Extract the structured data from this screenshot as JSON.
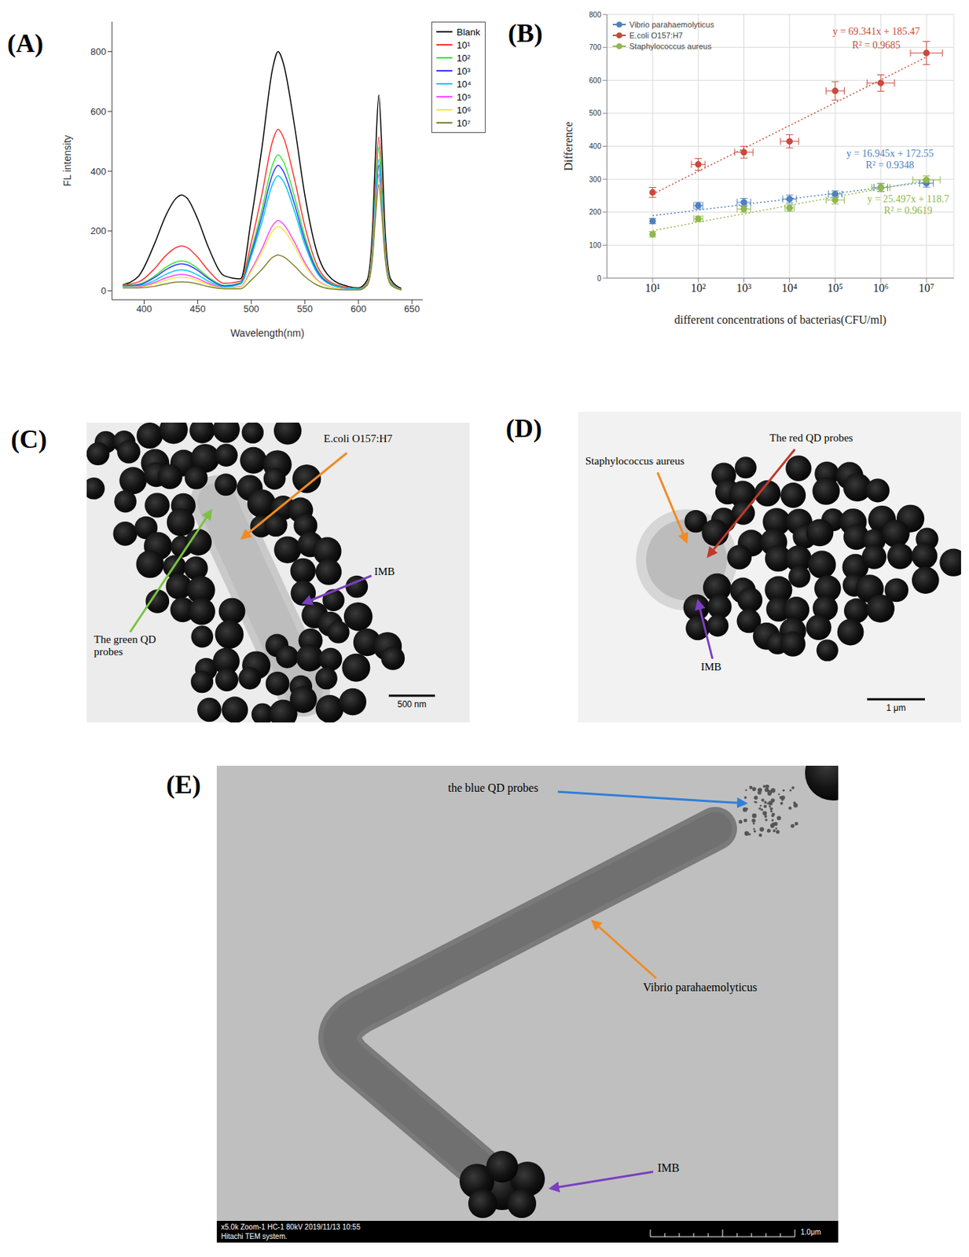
{
  "chart_data": [
    {
      "panel_label": "(A)",
      "type": "line",
      "x_label": "Wavelength(nm)",
      "y_label": "FL intensity",
      "x": [
        380,
        395,
        410,
        420,
        430,
        435,
        440,
        450,
        460,
        475,
        490,
        500,
        510,
        520,
        525,
        530,
        540,
        550,
        560,
        575,
        590,
        600,
        608,
        613,
        616,
        619,
        622,
        625,
        630,
        640
      ],
      "xlim": [
        370,
        660
      ],
      "xticks": [
        400,
        450,
        500,
        550,
        600,
        650
      ],
      "ylim": [
        -30,
        900
      ],
      "yticks": [
        0,
        200,
        400,
        600,
        800
      ],
      "legend": "right",
      "series": [
        {
          "name": "Blank",
          "color": "#000000",
          "values": [
            20,
            50,
            160,
            250,
            310,
            320,
            310,
            240,
            145,
            50,
            40,
            240,
            480,
            745,
            800,
            760,
            560,
            320,
            145,
            40,
            15,
            10,
            35,
            195,
            460,
            655,
            460,
            195,
            40,
            8
          ]
        },
        {
          "name": "10¹",
          "color": "#ff3030",
          "values": [
            20,
            30,
            75,
            117,
            145,
            150,
            145,
            112,
            68,
            25,
            32,
            162,
            324,
            502,
            540,
            513,
            378,
            216,
            97,
            27,
            11,
            8,
            26,
            155,
            360,
            515,
            360,
            155,
            31,
            5
          ]
        },
        {
          "name": "10²",
          "color": "#33e633",
          "values": [
            18,
            22,
            50,
            78,
            97,
            100,
            97,
            75,
            45,
            18,
            27,
            137,
            273,
            423,
            455,
            432,
            319,
            182,
            82,
            23,
            9,
            7,
            24,
            144,
            336,
            480,
            336,
            144,
            29,
            5
          ]
        },
        {
          "name": "10³",
          "color": "#3333ff",
          "values": [
            16,
            20,
            45,
            70,
            87,
            90,
            87,
            68,
            41,
            16,
            25,
            126,
            252,
            391,
            420,
            399,
            294,
            168,
            76,
            21,
            8,
            6,
            21,
            126,
            294,
            420,
            294,
            126,
            25,
            4
          ]
        },
        {
          "name": "10⁴",
          "color": "#00c8e8",
          "values": [
            14,
            17,
            35,
            55,
            68,
            70,
            68,
            53,
            32,
            13,
            23,
            116,
            231,
            358,
            385,
            366,
            270,
            154,
            69,
            19,
            8,
            6,
            22,
            132,
            308,
            440,
            308,
            132,
            26,
            4
          ]
        },
        {
          "name": "10⁵",
          "color": "#ff44ff",
          "values": [
            12,
            14,
            28,
            43,
            53,
            55,
            53,
            41,
            25,
            10,
            14,
            71,
            141,
            219,
            235,
            223,
            165,
            94,
            42,
            12,
            5,
            4,
            20,
            117,
            273,
            390,
            273,
            117,
            23,
            4
          ]
        },
        {
          "name": "10⁶",
          "color": "#ecec3c",
          "values": [
            12,
            12,
            23,
            35,
            44,
            45,
            44,
            34,
            20,
            9,
            13,
            65,
            129,
            200,
            215,
            204,
            151,
            86,
            39,
            11,
            4,
            4,
            19,
            111,
            259,
            370,
            259,
            111,
            22,
            4
          ]
        },
        {
          "name": "10⁷",
          "color": "#808030",
          "values": [
            10,
            10,
            15,
            23,
            29,
            30,
            29,
            23,
            14,
            7,
            7,
            36,
            72,
            112,
            120,
            114,
            84,
            48,
            22,
            6,
            3,
            3,
            18,
            107,
            249,
            355,
            249,
            107,
            21,
            3
          ]
        }
      ]
    },
    {
      "panel_label": "(B)",
      "type": "scatter",
      "x_label": "different concentrations of bacterias(CFU/ml)",
      "y_label": "Difference",
      "xlim": [
        0,
        7.6
      ],
      "xticks": [
        {
          "value": 1,
          "label": "10¹"
        },
        {
          "value": 2,
          "label": "10²"
        },
        {
          "value": 3,
          "label": "10³"
        },
        {
          "value": 4,
          "label": "10⁴"
        },
        {
          "value": 5,
          "label": "10⁵"
        },
        {
          "value": 6,
          "label": "10⁶"
        },
        {
          "value": 7,
          "label": "10⁷"
        }
      ],
      "ylim": [
        0,
        800
      ],
      "yticks": [
        0,
        100,
        200,
        300,
        400,
        500,
        600,
        700,
        800
      ],
      "grid": true,
      "legend": "upper left",
      "series": [
        {
          "name": "Vibrio parahaemolyticus",
          "color": "#4f81bd",
          "x": [
            1,
            2,
            3,
            4,
            5,
            6,
            7
          ],
          "values": [
            173,
            220,
            230,
            240,
            255,
            275,
            288
          ],
          "y_errors": [
            8,
            10,
            12,
            12,
            10,
            12,
            12
          ],
          "x_errors": [
            0,
            0.1,
            0.15,
            0.15,
            0.15,
            0.15,
            0.15
          ],
          "fit": {
            "slope": 16.945,
            "intercept": 172.55,
            "equation": "y = 16.945x + 172.55",
            "r_squared": "R² = 0.9348"
          }
        },
        {
          "name": "E.coli O157:H7",
          "color": "#c94a3b",
          "x": [
            1,
            2,
            3,
            4,
            5,
            6,
            7
          ],
          "values": [
            260,
            345,
            382,
            415,
            568,
            592,
            683
          ],
          "y_errors": [
            15,
            18,
            18,
            20,
            28,
            25,
            35
          ],
          "x_errors": [
            0,
            0.15,
            0.2,
            0.2,
            0.2,
            0.3,
            0.35
          ],
          "fit": {
            "slope": 69.341,
            "intercept": 185.47,
            "equation": "y = 69.341x + 185.47",
            "r_squared": "R² = 0.9685"
          }
        },
        {
          "name": "Staphylococcus aureus",
          "color": "#8fb84a",
          "x": [
            1,
            2,
            3,
            4,
            5,
            6,
            7
          ],
          "values": [
            133,
            180,
            210,
            213,
            237,
            275,
            298
          ],
          "y_errors": [
            8,
            8,
            10,
            10,
            12,
            12,
            12
          ],
          "x_errors": [
            0,
            0.1,
            0.15,
            0.1,
            0.2,
            0.2,
            0.3
          ],
          "fit": {
            "slope": 25.497,
            "intercept": 118.7,
            "equation": "y = 25.497x + 118.7",
            "r_squared": "R² = 0.9619"
          }
        }
      ]
    }
  ],
  "images": [
    {
      "panel_label": "(C)",
      "labels": [
        "E.coli O157:H7",
        "IMB",
        "The green QD probes"
      ],
      "scale_bar": "500 nm"
    },
    {
      "panel_label": "(D)",
      "labels": [
        "Staphylococcus aureus",
        "The red QD probes",
        "IMB"
      ],
      "scale_bar": "1 μm"
    },
    {
      "panel_label": "(E)",
      "labels": [
        "the blue QD probes",
        "Vibrio parahaemolyticus",
        "IMB"
      ],
      "scale_bar": "1.0μm",
      "footer": [
        "x5.0k Zoom-1 HC-1 80kV 2019/11/13 10:55",
        "Hitachi TEM system."
      ]
    }
  ]
}
